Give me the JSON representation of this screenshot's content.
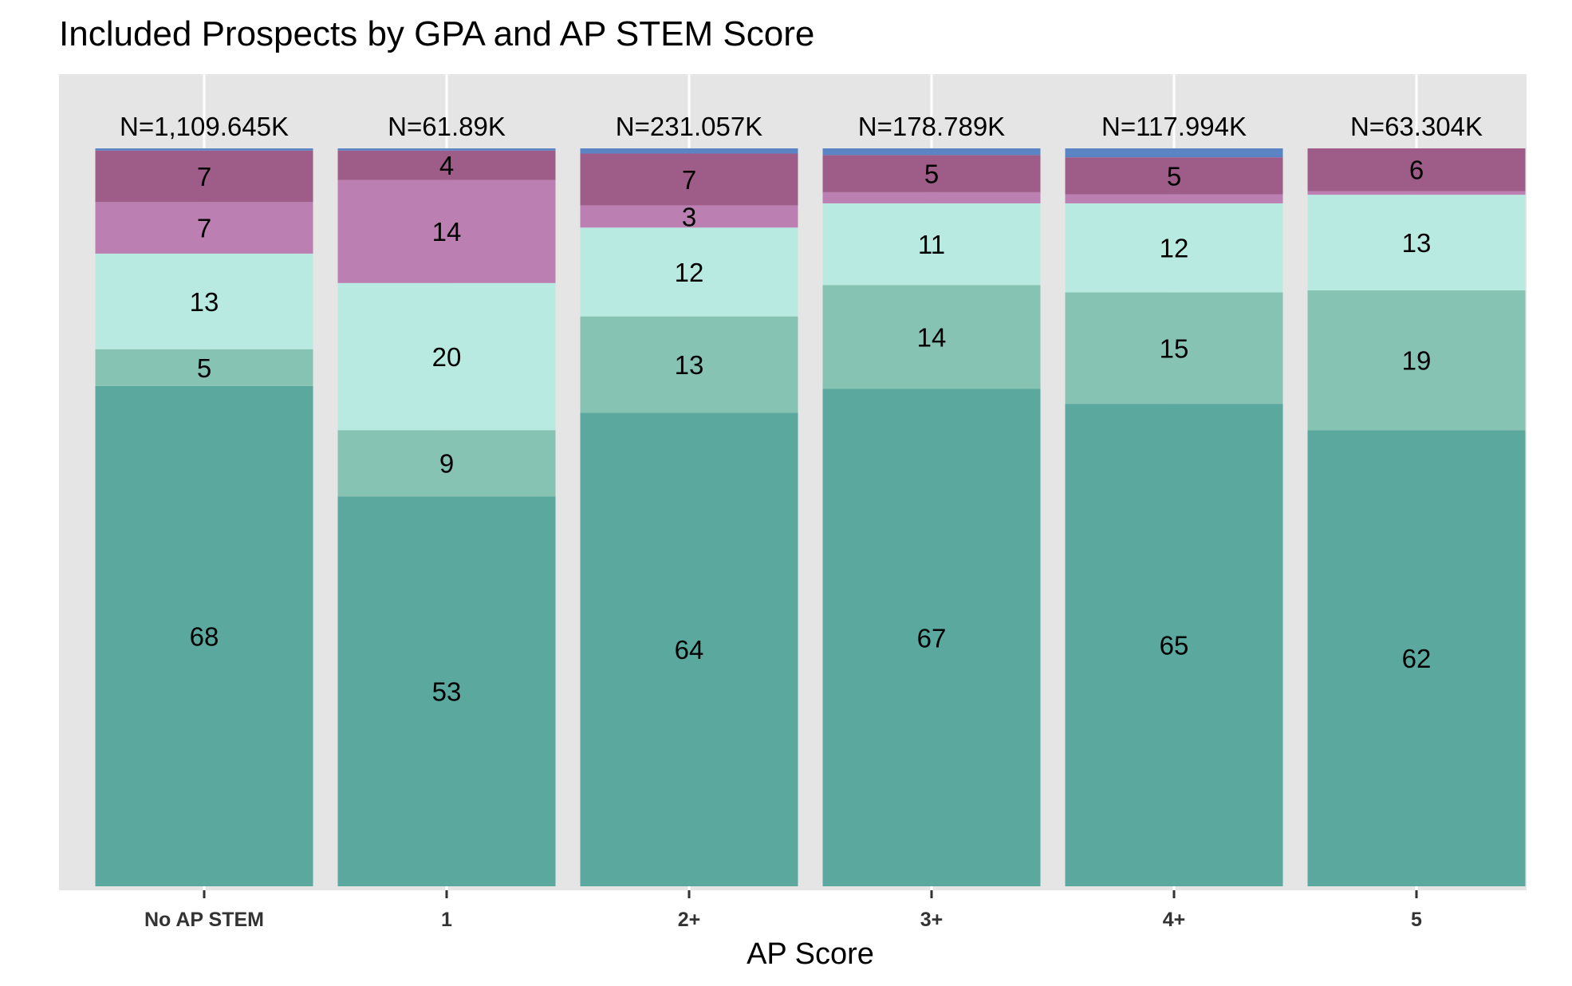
{
  "chart_data": {
    "type": "bar",
    "stacked": true,
    "normalized": true,
    "title": "Included Prospects by GPA and AP STEM Score",
    "xlabel": "AP Score",
    "ylabel": "",
    "ylim": [
      0,
      100
    ],
    "grid": true,
    "legend": "none",
    "categories": [
      "No AP STEM",
      "1",
      "2+",
      "3+",
      "4+",
      "5"
    ],
    "totals": [
      "N=1,109.645K",
      "N=61.89K",
      "N=231.057K",
      "N=178.789K",
      "N=117.994K",
      "N=63.304K"
    ],
    "series": [
      {
        "values": [
          68,
          53,
          64,
          67,
          65,
          62
        ],
        "labels": [
          "68",
          "53",
          "64",
          "67",
          "65",
          "62"
        ],
        "color": "#5ba89f"
      },
      {
        "values": [
          5,
          9,
          13,
          14,
          15,
          19
        ],
        "labels": [
          "5",
          "9",
          "13",
          "14",
          "15",
          "19"
        ],
        "color": "#87c3b3"
      },
      {
        "values": [
          13,
          20,
          12,
          11,
          12,
          13
        ],
        "labels": [
          "13",
          "20",
          "12",
          "11",
          "12",
          "13"
        ],
        "color": "#b8eae2"
      },
      {
        "values": [
          7,
          14,
          3,
          1.5,
          1.2,
          0.5
        ],
        "labels": [
          "7",
          "14",
          "3",
          "",
          "",
          ""
        ],
        "color": "#bb7fb1"
      },
      {
        "values": [
          7,
          4,
          7,
          5,
          5,
          5.8
        ],
        "labels": [
          "7",
          "4",
          "7",
          "5",
          "5",
          "6"
        ],
        "color": "#9e5c89"
      },
      {
        "values": [
          0.3,
          0.3,
          0.7,
          0.9,
          1.2,
          0
        ],
        "labels": [
          "",
          "",
          "",
          "",
          "",
          ""
        ],
        "color": "#5b84c4"
      }
    ],
    "colors": {
      "panel_background": "#e5e5e5",
      "gridline": "#ffffff"
    }
  }
}
